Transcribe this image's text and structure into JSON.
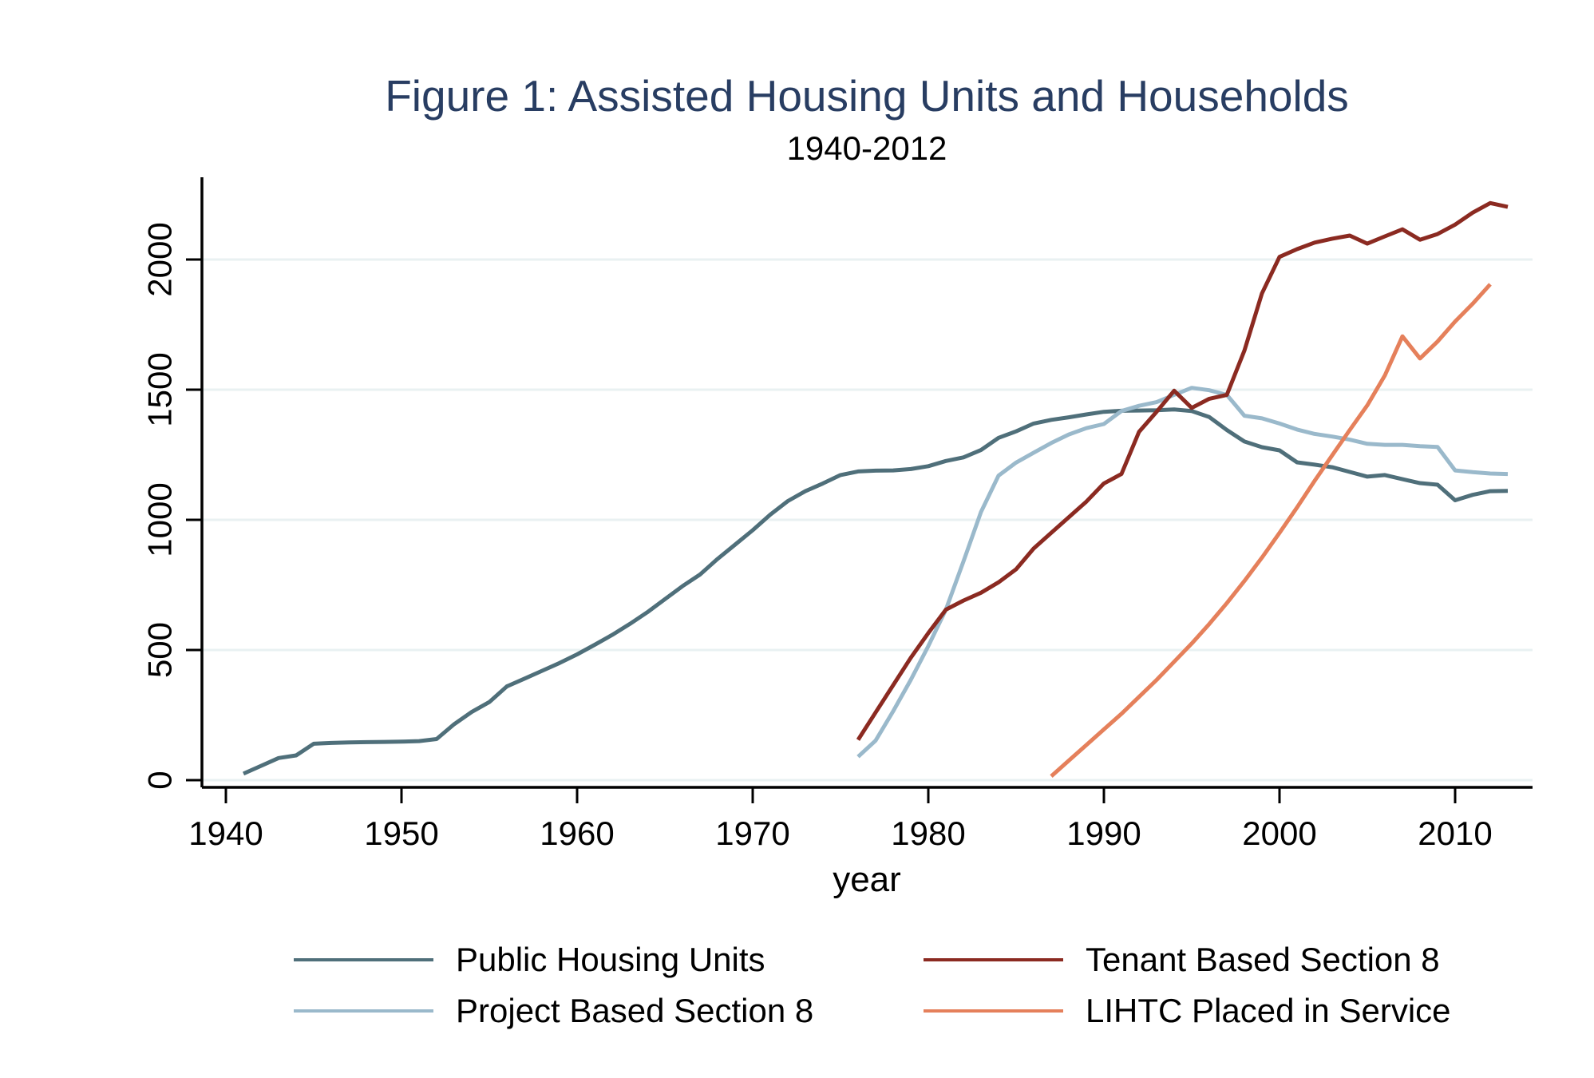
{
  "chart_data": {
    "type": "line",
    "title": "Figure 1: Assisted Housing Units and Households",
    "subtitle": "1940-2012",
    "xlabel": "year",
    "ylabel": "",
    "x_ticks": [
      1940,
      1950,
      1960,
      1970,
      1980,
      1990,
      2000,
      2010
    ],
    "y_ticks": [
      0,
      500,
      1000,
      1500,
      2000
    ],
    "xlim": [
      1938.6,
      2014.4
    ],
    "ylim": [
      0,
      2320
    ],
    "grid": "horizontal",
    "gridline_color": "#e9f1f2",
    "axis_color": "#000000",
    "title_color": "#283d62",
    "legend_position": "bottom-two-columns",
    "series": [
      {
        "name": "Public Housing Units",
        "color": "#4f6f7a",
        "draw_order": 1,
        "years": [
          1941,
          1942,
          1943,
          1944,
          1945,
          1946,
          1947,
          1948,
          1949,
          1950,
          1951,
          1952,
          1953,
          1954,
          1955,
          1956,
          1957,
          1958,
          1959,
          1960,
          1961,
          1962,
          1963,
          1964,
          1965,
          1966,
          1967,
          1968,
          1969,
          1970,
          1971,
          1972,
          1973,
          1974,
          1975,
          1976,
          1977,
          1978,
          1979,
          1980,
          1981,
          1982,
          1983,
          1984,
          1985,
          1986,
          1987,
          1988,
          1989,
          1990,
          1991,
          1992,
          1993,
          1994,
          1995,
          1996,
          1997,
          1998,
          1999,
          2000,
          2001,
          2002,
          2003,
          2004,
          2005,
          2006,
          2007,
          2008,
          2009,
          2010,
          2011,
          2012,
          2013
        ],
        "values": [
          25,
          55,
          85,
          95,
          140,
          143,
          145,
          146,
          147,
          148,
          150,
          158,
          215,
          262,
          300,
          360,
          390,
          420,
          450,
          483,
          520,
          558,
          600,
          645,
          695,
          745,
          790,
          850,
          905,
          960,
          1020,
          1072,
          1110,
          1140,
          1172,
          1186,
          1189,
          1190,
          1195,
          1206,
          1226,
          1240,
          1268,
          1315,
          1340,
          1370,
          1384,
          1394,
          1405,
          1415,
          1419,
          1420,
          1421,
          1424,
          1418,
          1395,
          1345,
          1301,
          1279,
          1267,
          1221,
          1212,
          1202,
          1184,
          1166,
          1172,
          1156,
          1141,
          1135,
          1075,
          1096,
          1110,
          1111
        ]
      },
      {
        "name": "Tenant Based Section 8",
        "color": "#8b2a21",
        "draw_order": 3,
        "years": [
          1976,
          1977,
          1978,
          1979,
          1980,
          1981,
          1982,
          1983,
          1984,
          1985,
          1986,
          1987,
          1988,
          1989,
          1990,
          1991,
          1992,
          1993,
          1994,
          1995,
          1996,
          1997,
          1998,
          1999,
          2000,
          2001,
          2002,
          2003,
          2004,
          2005,
          2006,
          2007,
          2008,
          2009,
          2010,
          2011,
          2012,
          2013
        ],
        "values": [
          155,
          260,
          365,
          470,
          565,
          655,
          690,
          720,
          760,
          810,
          890,
          950,
          1010,
          1070,
          1140,
          1176,
          1338,
          1415,
          1496,
          1430,
          1465,
          1480,
          1650,
          1870,
          2010,
          2040,
          2065,
          2080,
          2092,
          2061,
          2089,
          2116,
          2076,
          2098,
          2134,
          2180,
          2217,
          2202
        ]
      },
      {
        "name": "Project Based Section 8",
        "color": "#9ab9cb",
        "draw_order": 2,
        "years": [
          1976,
          1977,
          1978,
          1979,
          1980,
          1981,
          1982,
          1983,
          1984,
          1985,
          1986,
          1987,
          1988,
          1989,
          1990,
          1991,
          1992,
          1993,
          1994,
          1995,
          1996,
          1997,
          1998,
          1999,
          2000,
          2001,
          2002,
          2003,
          2004,
          2005,
          2006,
          2007,
          2008,
          2009,
          2010,
          2011,
          2012,
          2013
        ],
        "values": [
          90,
          152,
          265,
          385,
          515,
          655,
          840,
          1030,
          1170,
          1220,
          1258,
          1295,
          1328,
          1352,
          1368,
          1418,
          1438,
          1452,
          1480,
          1507,
          1498,
          1480,
          1400,
          1390,
          1370,
          1347,
          1330,
          1320,
          1308,
          1292,
          1288,
          1288,
          1283,
          1280,
          1190,
          1183,
          1178,
          1176
        ]
      },
      {
        "name": "LIHTC Placed in Service",
        "color": "#e5805b",
        "draw_order": 4,
        "years": [
          1987,
          1988,
          1989,
          1990,
          1991,
          1992,
          1993,
          1994,
          1995,
          1996,
          1997,
          1998,
          1999,
          2000,
          2001,
          2002,
          2003,
          2004,
          2005,
          2006,
          2007,
          2008,
          2009,
          2010,
          2011,
          2012
        ],
        "values": [
          15,
          75,
          135,
          195,
          255,
          320,
          385,
          455,
          525,
          600,
          680,
          765,
          855,
          950,
          1048,
          1150,
          1248,
          1345,
          1440,
          1555,
          1705,
          1620,
          1685,
          1762,
          1830,
          1905
        ]
      }
    ]
  }
}
